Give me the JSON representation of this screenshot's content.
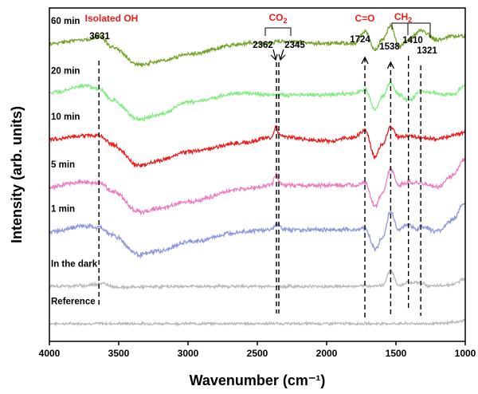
{
  "chart_data": {
    "type": "line",
    "xlabel": "Wavenumber (cm⁻¹)",
    "ylabel": "Intensity (arb. units)",
    "xlim": [
      4000,
      1000
    ],
    "x_reversed": true,
    "x_ticks": [
      4000,
      3500,
      3000,
      2500,
      2000,
      1500,
      1000
    ],
    "y_ticks_shown": false,
    "grid": false,
    "series": [
      {
        "name": "Reference",
        "color": "#b8b8b8",
        "offset": 0.3,
        "noise": 0.03,
        "points": [
          [
            4000,
            0
          ],
          [
            3700,
            0
          ],
          [
            3000,
            0
          ],
          [
            2500,
            0
          ],
          [
            2000,
            0
          ],
          [
            1600,
            0
          ],
          [
            1200,
            0
          ],
          [
            1050,
            0.05
          ],
          [
            1000,
            0.1
          ]
        ]
      },
      {
        "name": "In the dark",
        "color": "#b8b8b8",
        "offset": 1.35,
        "noise": 0.035,
        "points": [
          [
            4000,
            0
          ],
          [
            3750,
            0.02
          ],
          [
            3631,
            0.08
          ],
          [
            3500,
            -0.02
          ],
          [
            3000,
            0
          ],
          [
            2500,
            0
          ],
          [
            2000,
            0
          ],
          [
            1800,
            0
          ],
          [
            1600,
            0.02
          ],
          [
            1538,
            0.45
          ],
          [
            1480,
            0.02
          ],
          [
            1410,
            0.12
          ],
          [
            1321,
            0.1
          ],
          [
            1250,
            0
          ],
          [
            1100,
            0.05
          ],
          [
            1000,
            0.2
          ]
        ]
      },
      {
        "name": "1 min",
        "color": "#8f96e0",
        "offset": 2.9,
        "noise": 0.05,
        "points": [
          [
            4000,
            0
          ],
          [
            3750,
            0.15
          ],
          [
            3631,
            0.1
          ],
          [
            3550,
            -0.1
          ],
          [
            3350,
            -0.65
          ],
          [
            3200,
            -0.55
          ],
          [
            3000,
            -0.3
          ],
          [
            2600,
            0
          ],
          [
            2400,
            0.05
          ],
          [
            2362,
            0.2
          ],
          [
            2300,
            0.05
          ],
          [
            2000,
            0.05
          ],
          [
            1800,
            0.05
          ],
          [
            1724,
            0.1
          ],
          [
            1650,
            -0.5
          ],
          [
            1600,
            -0.2
          ],
          [
            1538,
            0.55
          ],
          [
            1480,
            0.05
          ],
          [
            1410,
            0.2
          ],
          [
            1350,
            0.05
          ],
          [
            1321,
            0.15
          ],
          [
            1200,
            0
          ],
          [
            1100,
            0.3
          ],
          [
            1000,
            0.8
          ]
        ]
      },
      {
        "name": "5 min",
        "color": "#f07ac0",
        "offset": 4.15,
        "noise": 0.05,
        "points": [
          [
            4000,
            0
          ],
          [
            3750,
            0.15
          ],
          [
            3631,
            0.1
          ],
          [
            3550,
            -0.1
          ],
          [
            3350,
            -0.7
          ],
          [
            3200,
            -0.6
          ],
          [
            3000,
            -0.4
          ],
          [
            2600,
            -0.05
          ],
          [
            2400,
            0.05
          ],
          [
            2362,
            0.35
          ],
          [
            2345,
            0.15
          ],
          [
            2300,
            0.05
          ],
          [
            2000,
            0.05
          ],
          [
            1800,
            0.05
          ],
          [
            1724,
            0.15
          ],
          [
            1650,
            -0.55
          ],
          [
            1600,
            -0.2
          ],
          [
            1538,
            0.5
          ],
          [
            1480,
            0.05
          ],
          [
            1410,
            0.15
          ],
          [
            1321,
            0.1
          ],
          [
            1200,
            0
          ],
          [
            1100,
            0.3
          ],
          [
            1000,
            0.8
          ]
        ]
      },
      {
        "name": "10 min",
        "color": "#ee1a1a",
        "offset": 5.5,
        "noise": 0.045,
        "points": [
          [
            4000,
            0
          ],
          [
            3750,
            0.1
          ],
          [
            3631,
            0.1
          ],
          [
            3550,
            -0.15
          ],
          [
            3350,
            -0.75
          ],
          [
            3200,
            -0.6
          ],
          [
            3000,
            -0.35
          ],
          [
            2600,
            -0.1
          ],
          [
            2400,
            0.05
          ],
          [
            2362,
            0.35
          ],
          [
            2345,
            0.15
          ],
          [
            2300,
            0.05
          ],
          [
            2000,
            -0.05
          ],
          [
            1800,
            0.05
          ],
          [
            1724,
            0.25
          ],
          [
            1650,
            -0.5
          ],
          [
            1600,
            -0.15
          ],
          [
            1538,
            0.35
          ],
          [
            1480,
            0.05
          ],
          [
            1410,
            0.1
          ],
          [
            1321,
            0.05
          ],
          [
            1200,
            0
          ],
          [
            1100,
            0.1
          ],
          [
            1000,
            0.2
          ]
        ]
      },
      {
        "name": "20 min",
        "color": "#82ec82",
        "offset": 6.8,
        "noise": 0.045,
        "points": [
          [
            4000,
            0
          ],
          [
            3750,
            0.2
          ],
          [
            3631,
            0.1
          ],
          [
            3550,
            -0.2
          ],
          [
            3350,
            -0.75
          ],
          [
            3200,
            -0.6
          ],
          [
            3000,
            -0.25
          ],
          [
            2600,
            0
          ],
          [
            2400,
            -0.05
          ],
          [
            2000,
            -0.05
          ],
          [
            1800,
            0
          ],
          [
            1724,
            0.1
          ],
          [
            1650,
            -0.45
          ],
          [
            1600,
            -0.1
          ],
          [
            1538,
            0.3
          ],
          [
            1480,
            -0.05
          ],
          [
            1410,
            -0.2
          ],
          [
            1321,
            0.05
          ],
          [
            1200,
            0
          ],
          [
            1100,
            -0.05
          ],
          [
            1000,
            0.2
          ]
        ]
      },
      {
        "name": "60 min",
        "color": "#72a228",
        "offset": 8.2,
        "noise": 0.045,
        "points": [
          [
            4000,
            0
          ],
          [
            3750,
            0.1
          ],
          [
            3631,
            0.2
          ],
          [
            3550,
            -0.1
          ],
          [
            3350,
            -0.6
          ],
          [
            3200,
            -0.5
          ],
          [
            3000,
            -0.3
          ],
          [
            2600,
            0
          ],
          [
            2400,
            0
          ],
          [
            2362,
            0.05
          ],
          [
            2000,
            0
          ],
          [
            1800,
            0
          ],
          [
            1724,
            0.35
          ],
          [
            1650,
            -0.2
          ],
          [
            1600,
            0.1
          ],
          [
            1538,
            0.5
          ],
          [
            1480,
            -0.1
          ],
          [
            1410,
            0.1
          ],
          [
            1321,
            0.35
          ],
          [
            1200,
            0.1
          ],
          [
            1100,
            0.2
          ],
          [
            1000,
            0.2
          ]
        ]
      }
    ],
    "peak_labels": [
      {
        "text": "3631",
        "x": 3631
      },
      {
        "text": "2362",
        "x": 2362
      },
      {
        "text": "2345",
        "x": 2345
      },
      {
        "text": "1724",
        "x": 1724
      },
      {
        "text": "1538",
        "x": 1538
      },
      {
        "text": "1410",
        "x": 1410
      },
      {
        "text": "1321",
        "x": 1321
      }
    ],
    "group_labels": [
      {
        "text": "Isolated OH",
        "color": "#ee1a1a"
      },
      {
        "text": "C=O",
        "color": "#ee1a1a"
      }
    ],
    "co2_label": {
      "base": "CO",
      "sub": "2",
      "color": "#ee1a1a"
    },
    "ch2_label": {
      "base": "CH",
      "sub": "2",
      "color": "#ee1a1a"
    },
    "dashed_markers": [
      3631,
      2362,
      2345,
      1724,
      1538,
      1410,
      1321
    ]
  }
}
